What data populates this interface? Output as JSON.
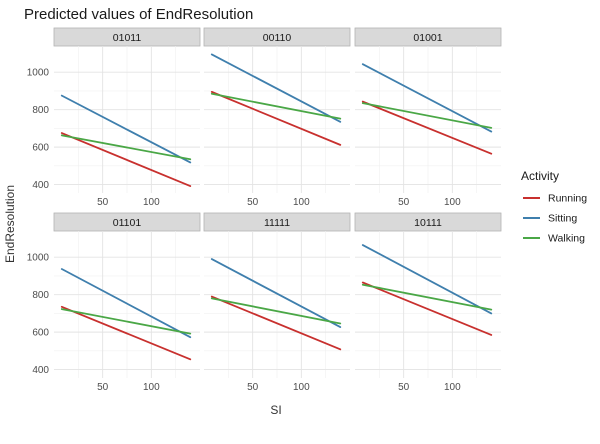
{
  "chart_data": {
    "type": "line",
    "title": "Predicted values of EndResolution",
    "xlabel": "SI",
    "ylabel": "EndResolution",
    "x_ticks": [
      50,
      100
    ],
    "y_ticks": [
      400,
      600,
      800,
      1000
    ],
    "xlim": [
      0,
      150
    ],
    "ylim": [
      355,
      1140
    ],
    "grid": true,
    "legend": {
      "title": "Activity",
      "position": "right",
      "entries": [
        {
          "name": "Running",
          "color": "#c8302e"
        },
        {
          "name": "Sitting",
          "color": "#3f7fad"
        },
        {
          "name": "Walking",
          "color": "#4aa746"
        }
      ]
    },
    "x_range": [
      8,
      140
    ],
    "panels": [
      {
        "label": "01011",
        "series": [
          {
            "name": "Running",
            "values": [
              675,
              392
            ]
          },
          {
            "name": "Sitting",
            "values": [
              875,
              518
            ]
          },
          {
            "name": "Walking",
            "values": [
              663,
              535
            ]
          }
        ]
      },
      {
        "label": "00110",
        "series": [
          {
            "name": "Running",
            "values": [
              895,
              612
            ]
          },
          {
            "name": "Sitting",
            "values": [
              1095,
              735
            ]
          },
          {
            "name": "Walking",
            "values": [
              885,
              752
            ]
          }
        ]
      },
      {
        "label": "01001",
        "series": [
          {
            "name": "Running",
            "values": [
              843,
              565
            ]
          },
          {
            "name": "Sitting",
            "values": [
              1043,
              683
            ]
          },
          {
            "name": "Walking",
            "values": [
              835,
              703
            ]
          }
        ]
      },
      {
        "label": "01101",
        "series": [
          {
            "name": "Running",
            "values": [
              735,
              455
            ]
          },
          {
            "name": "Sitting",
            "values": [
              937,
              573
            ]
          },
          {
            "name": "Walking",
            "values": [
              723,
              592
            ]
          }
        ]
      },
      {
        "label": "11111",
        "series": [
          {
            "name": "Running",
            "values": [
              790,
              508
            ]
          },
          {
            "name": "Sitting",
            "values": [
              990,
              627
            ]
          },
          {
            "name": "Walking",
            "values": [
              780,
              646
            ]
          }
        ]
      },
      {
        "label": "10111",
        "series": [
          {
            "name": "Running",
            "values": [
              865,
              585
            ]
          },
          {
            "name": "Sitting",
            "values": [
              1065,
              700
            ]
          },
          {
            "name": "Walking",
            "values": [
              853,
              720
            ]
          }
        ]
      }
    ]
  }
}
